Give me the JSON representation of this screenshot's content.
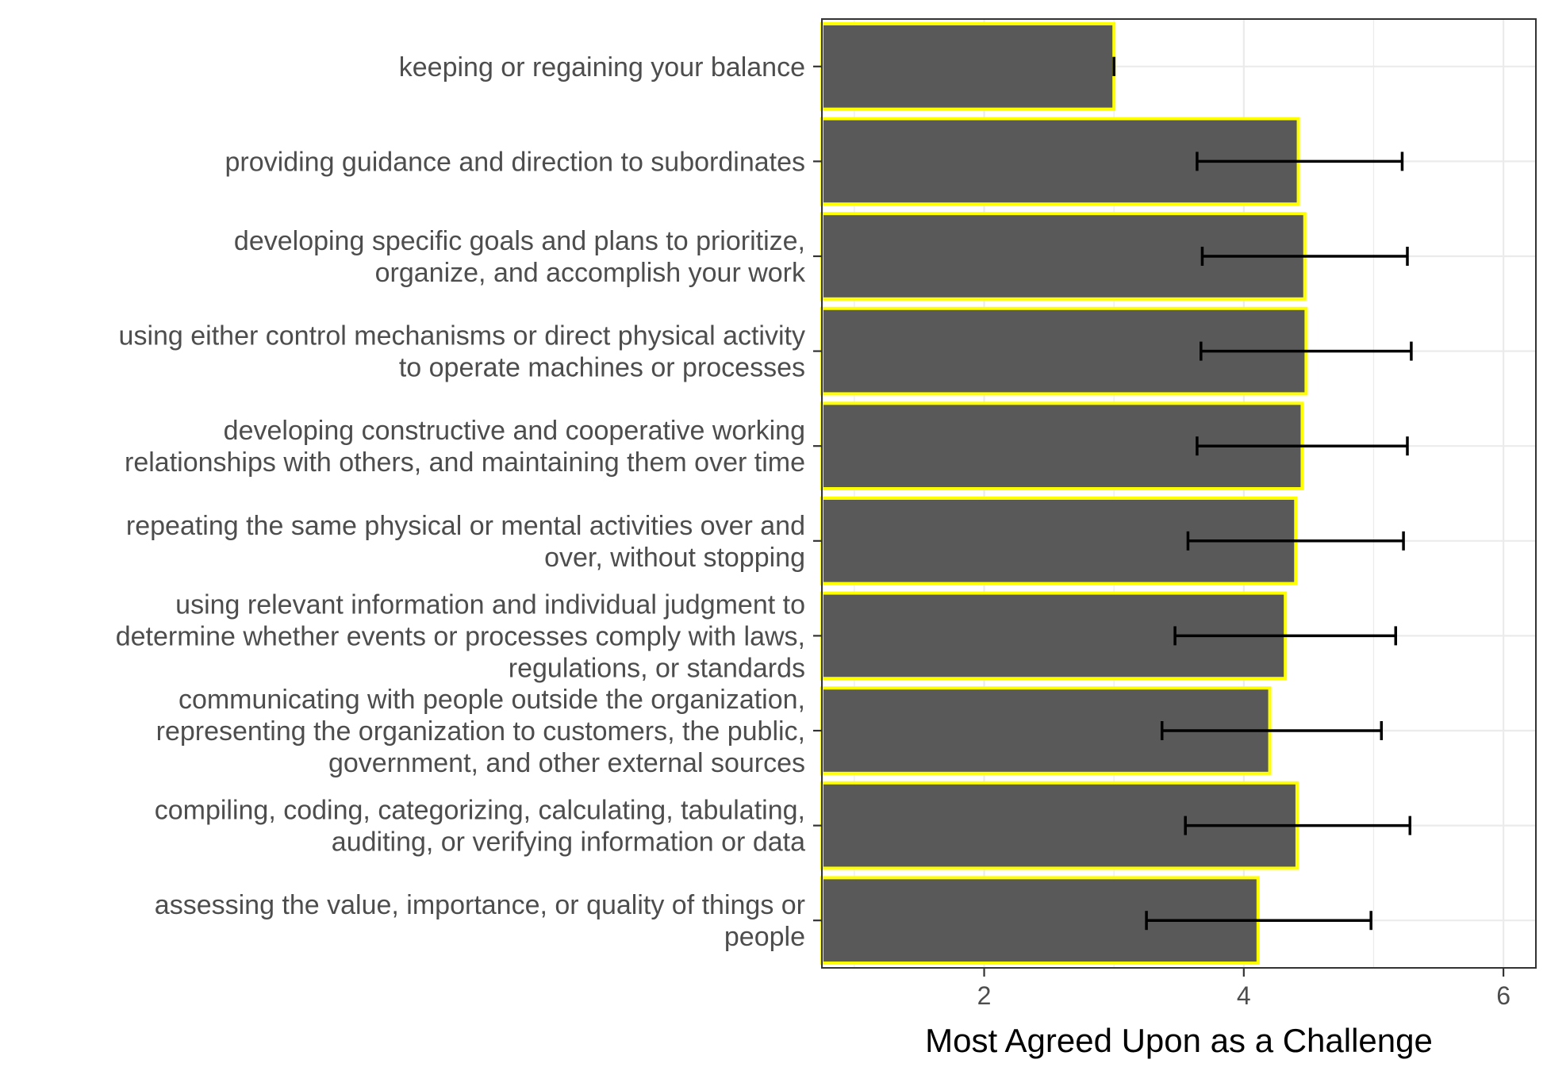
{
  "chart_data": {
    "type": "bar",
    "orientation": "horizontal",
    "xlabel": "Most Agreed Upon as a Challenge",
    "ylabel": "",
    "xlim": [
      0.75,
      6.25
    ],
    "xticks": [
      2,
      4,
      6
    ],
    "grid": true,
    "legend": "none",
    "colors": {
      "bar_fill": "#595959",
      "bar_outline": "#ffff00",
      "error_bar": "#000000",
      "grid": "#ebebeb",
      "panel_border": "#333333"
    },
    "categories": [
      [
        "keeping or regaining your balance"
      ],
      [
        "providing guidance and direction to subordinates"
      ],
      [
        "developing specific goals and plans to prioritize,",
        "organize, and accomplish your work"
      ],
      [
        "using either control mechanisms or direct physical activity",
        "to operate machines or processes"
      ],
      [
        "developing constructive and cooperative working",
        "relationships with others, and maintaining them over time"
      ],
      [
        "repeating the same physical or mental activities over and",
        "over, without stopping"
      ],
      [
        "using relevant information and individual judgment to",
        "determine whether events or processes comply with laws,",
        "regulations, or standards"
      ],
      [
        "communicating with people outside the organization,",
        "representing the organization to customers, the public,",
        "government, and other external sources"
      ],
      [
        "compiling, coding, categorizing, calculating, tabulating,",
        "auditing, or verifying information or data"
      ],
      [
        "assessing the value, importance, or quality of things or",
        "people"
      ]
    ],
    "values": [
      3.0,
      4.42,
      4.47,
      4.48,
      4.45,
      4.4,
      4.32,
      4.2,
      4.41,
      4.11
    ],
    "error_low": [
      3.0,
      3.64,
      3.68,
      3.67,
      3.64,
      3.57,
      3.47,
      3.37,
      3.55,
      3.25
    ],
    "error_high": [
      3.0,
      5.22,
      5.26,
      5.29,
      5.26,
      5.23,
      5.17,
      5.06,
      5.28,
      4.98
    ]
  }
}
